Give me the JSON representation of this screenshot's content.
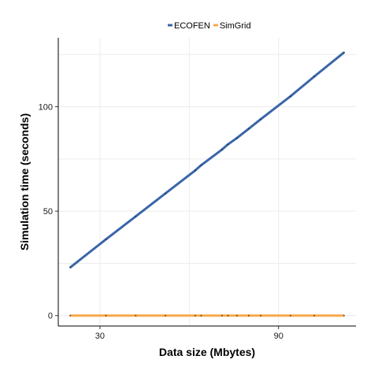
{
  "chart_data": {
    "type": "line",
    "xlabel": "Data  size (Mbytes)",
    "ylabel": "Simulation time (seconds)",
    "xlim": [
      16,
      116
    ],
    "ylim": [
      -5,
      133
    ],
    "xticks": [
      30,
      90
    ],
    "yticks": [
      0,
      50,
      100
    ],
    "grid": true,
    "legend_position": "top",
    "series": [
      {
        "name": "ECOFEN",
        "color": "#3a66a8",
        "points": [
          [
            20,
            23
          ],
          [
            32,
            36.5
          ],
          [
            42,
            47.5
          ],
          [
            52,
            58.5
          ],
          [
            62,
            69.5
          ],
          [
            64,
            72
          ],
          [
            71,
            79.5
          ],
          [
            73,
            82
          ],
          [
            76,
            85
          ],
          [
            80,
            89.5
          ],
          [
            84,
            94
          ],
          [
            94,
            105
          ],
          [
            102,
            114.5
          ],
          [
            112,
            126
          ]
        ]
      },
      {
        "name": "SimGrid",
        "color": "#f7a94b",
        "points": [
          [
            20,
            0
          ],
          [
            32,
            0
          ],
          [
            42,
            0
          ],
          [
            52,
            0
          ],
          [
            62,
            0
          ],
          [
            64,
            0
          ],
          [
            71,
            0
          ],
          [
            73,
            0
          ],
          [
            76,
            0
          ],
          [
            80,
            0
          ],
          [
            84,
            0
          ],
          [
            94,
            0
          ],
          [
            102,
            0
          ],
          [
            112,
            0
          ]
        ]
      }
    ]
  }
}
